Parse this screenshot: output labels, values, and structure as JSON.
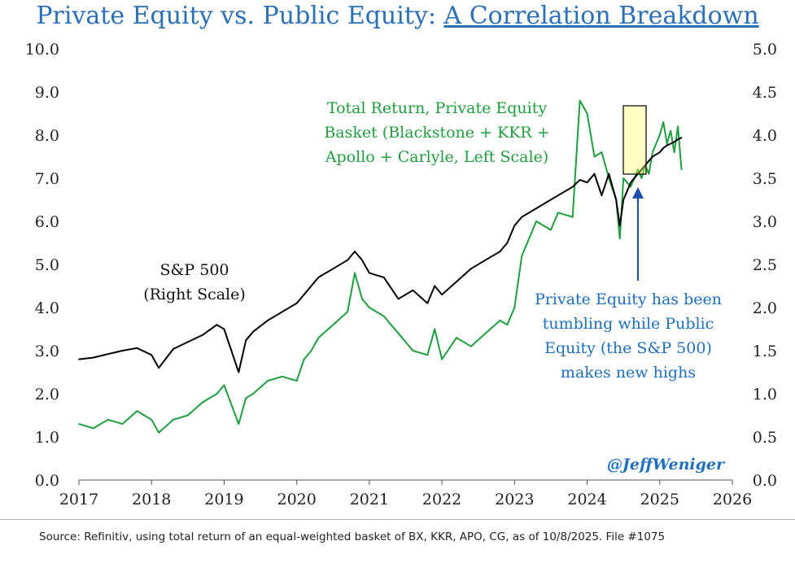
{
  "title": {
    "prefix": "Private Equity vs. Public Equity: ",
    "underlined": "A Correlation Breakdown"
  },
  "chart_data": {
    "type": "line",
    "x_ticks": [
      "2017",
      "2018",
      "2019",
      "2020",
      "2021",
      "2022",
      "2023",
      "2024",
      "2025",
      "2026"
    ],
    "xlim": [
      2017,
      2026
    ],
    "left_axis": {
      "ticks": [
        "0.0",
        "1.0",
        "2.0",
        "3.0",
        "4.0",
        "5.0",
        "6.0",
        "7.0",
        "8.0",
        "9.0",
        "10.0"
      ],
      "ylim": [
        0,
        10
      ]
    },
    "right_axis": {
      "ticks": [
        "0.0",
        "0.5",
        "1.0",
        "1.5",
        "2.0",
        "2.5",
        "3.0",
        "3.5",
        "4.0",
        "4.5",
        "5.0"
      ],
      "ylim": [
        0,
        5
      ]
    },
    "series": [
      {
        "name": "Total Return, Private Equity Basket",
        "axis": "left",
        "color": "#1e9e3e",
        "x": [
          2017.0,
          2017.2,
          2017.4,
          2017.6,
          2017.8,
          2018.0,
          2018.1,
          2018.3,
          2018.5,
          2018.7,
          2018.9,
          2019.0,
          2019.2,
          2019.3,
          2019.4,
          2019.6,
          2019.8,
          2020.0,
          2020.1,
          2020.2,
          2020.3,
          2020.5,
          2020.7,
          2020.8,
          2020.9,
          2021.0,
          2021.2,
          2021.4,
          2021.6,
          2021.8,
          2021.9,
          2022.0,
          2022.2,
          2022.4,
          2022.6,
          2022.8,
          2022.9,
          2023.0,
          2023.1,
          2023.3,
          2023.5,
          2023.6,
          2023.8,
          2023.9,
          2024.0,
          2024.1,
          2024.2,
          2024.3,
          2024.4,
          2024.45,
          2024.5,
          2024.6,
          2024.7,
          2024.75,
          2024.8,
          2024.85,
          2024.9,
          2025.0,
          2025.05,
          2025.1,
          2025.15,
          2025.2,
          2025.25,
          2025.3
        ],
        "values": [
          1.3,
          1.2,
          1.4,
          1.3,
          1.6,
          1.4,
          1.1,
          1.4,
          1.5,
          1.8,
          2.0,
          2.2,
          1.3,
          1.9,
          2.0,
          2.3,
          2.4,
          2.3,
          2.8,
          3.0,
          3.3,
          3.6,
          3.9,
          4.8,
          4.2,
          4.0,
          3.8,
          3.4,
          3.0,
          2.9,
          3.5,
          2.8,
          3.3,
          3.1,
          3.4,
          3.7,
          3.6,
          4.0,
          5.2,
          6.0,
          5.8,
          6.2,
          6.1,
          8.8,
          8.5,
          7.5,
          7.6,
          7.0,
          6.5,
          5.6,
          7.0,
          6.8,
          7.2,
          7.0,
          7.3,
          7.1,
          7.6,
          8.0,
          8.3,
          7.8,
          8.1,
          7.6,
          8.2,
          7.2
        ],
        "label": [
          "Total Return, Private Equity",
          "Basket (Blackstone + KKR +",
          "Apollo + Carlyle, Left Scale)"
        ]
      },
      {
        "name": "S&P 500",
        "axis": "right",
        "color": "#000000",
        "x": [
          2017.0,
          2017.2,
          2017.4,
          2017.6,
          2017.8,
          2018.0,
          2018.1,
          2018.3,
          2018.5,
          2018.7,
          2018.9,
          2019.0,
          2019.2,
          2019.3,
          2019.4,
          2019.6,
          2019.8,
          2020.0,
          2020.1,
          2020.2,
          2020.3,
          2020.5,
          2020.7,
          2020.8,
          2020.9,
          2021.0,
          2021.2,
          2021.4,
          2021.6,
          2021.8,
          2021.9,
          2022.0,
          2022.2,
          2022.4,
          2022.6,
          2022.8,
          2022.9,
          2023.0,
          2023.1,
          2023.3,
          2023.5,
          2023.6,
          2023.8,
          2023.9,
          2024.0,
          2024.1,
          2024.2,
          2024.3,
          2024.4,
          2024.45,
          2024.5,
          2024.6,
          2024.7,
          2024.75,
          2024.8,
          2024.85,
          2024.9,
          2025.0,
          2025.05,
          2025.1,
          2025.15,
          2025.2,
          2025.25,
          2025.3
        ],
        "values": [
          1.4,
          1.42,
          1.46,
          1.5,
          1.53,
          1.45,
          1.3,
          1.52,
          1.6,
          1.68,
          1.8,
          1.75,
          1.25,
          1.62,
          1.72,
          1.85,
          1.95,
          2.05,
          2.15,
          2.25,
          2.35,
          2.45,
          2.55,
          2.65,
          2.55,
          2.4,
          2.35,
          2.1,
          2.2,
          2.05,
          2.25,
          2.15,
          2.3,
          2.45,
          2.55,
          2.65,
          2.75,
          2.95,
          3.05,
          3.15,
          3.25,
          3.3,
          3.4,
          3.48,
          3.45,
          3.55,
          3.3,
          3.55,
          3.25,
          2.95,
          3.25,
          3.45,
          3.55,
          3.6,
          3.65,
          3.7,
          3.75,
          3.8,
          3.85,
          3.88,
          3.9,
          3.92,
          3.95,
          3.97
        ],
        "label": [
          "S&P 500",
          "(Right Scale)"
        ]
      }
    ]
  },
  "annotation": {
    "lines": [
      "Private Equity has been",
      "tumbling while Public",
      "Equity (the S&P 500)",
      "makes new highs"
    ],
    "color": "#1f6fc0"
  },
  "handle": "@JeffWeniger",
  "source": "Source: Refinitiv, using total return of an equal-weighted basket of BX, KKR, APO, CG, as of 10/8/2025. File #1075"
}
